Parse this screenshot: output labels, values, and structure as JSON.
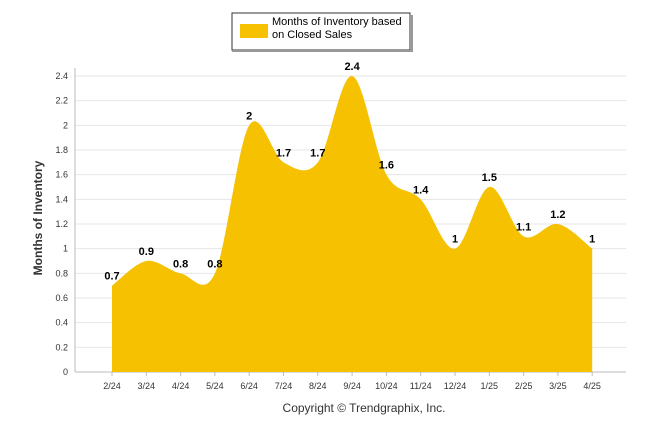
{
  "chart_data": {
    "type": "area",
    "categories": [
      "2/24",
      "3/24",
      "4/24",
      "5/24",
      "6/24",
      "7/24",
      "8/24",
      "9/24",
      "10/24",
      "11/24",
      "12/24",
      "1/25",
      "2/25",
      "3/25",
      "4/25"
    ],
    "series": [
      {
        "name": "Months of Inventory based on Closed Sales",
        "values": [
          0.7,
          0.9,
          0.8,
          0.8,
          2,
          1.7,
          1.7,
          2.4,
          1.6,
          1.4,
          1,
          1.5,
          1.1,
          1.2,
          1
        ],
        "labels": [
          "0.7",
          "0.9",
          "0.8",
          "0.8",
          "2",
          "1.7",
          "1.7",
          "2.4",
          "1.6",
          "1.4",
          "1",
          "1.5",
          "1.1",
          "1.2",
          "1"
        ],
        "color": "#F5C100"
      }
    ],
    "ylabel": "Months of Inventory",
    "xlabel": "",
    "ylim": [
      0,
      2.4
    ],
    "yticks": [
      "0",
      "0.2",
      "0.4",
      "0.6",
      "0.8",
      "1",
      "1.2",
      "1.4",
      "1.6",
      "1.8",
      "2",
      "2.2",
      "2.4"
    ],
    "grid": true,
    "legend_placement": "top-center"
  },
  "legend": {
    "line1": "Months of Inventory based",
    "line2": "on Closed Sales"
  },
  "footer": "Copyright © Trendgraphix, Inc."
}
